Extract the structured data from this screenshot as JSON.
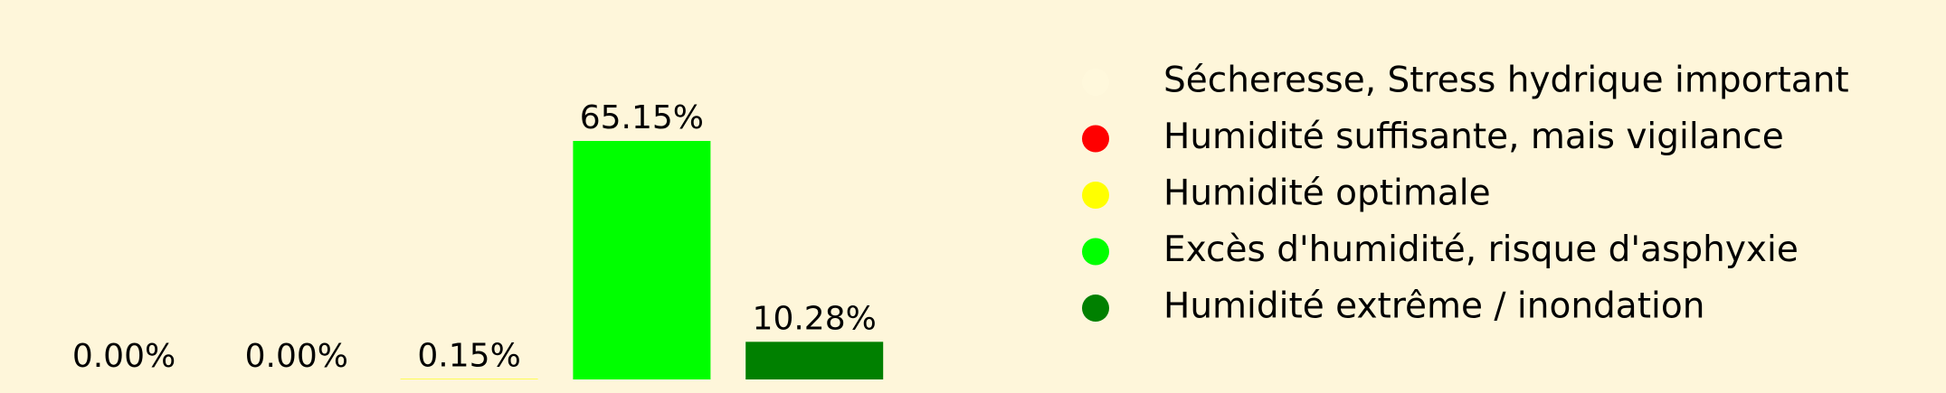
{
  "chart_data": {
    "type": "bar",
    "series": [
      {
        "name": "Sécheresse, Stress hydrique important",
        "color": "#fff8dc",
        "values": [
          0
        ],
        "value_labels": [
          "0.00%"
        ]
      },
      {
        "name": "Humidité suffisante, mais vigilance",
        "color": "#ff0000",
        "values": [
          0
        ],
        "value_labels": [
          "0.00%"
        ]
      },
      {
        "name": "Humidité optimale",
        "color": "#ffff00",
        "values": [
          0.15
        ],
        "value_labels": [
          "0.15%"
        ]
      },
      {
        "name": "Excès d'humidité, risque d'asphyxie",
        "color": "#00ff00",
        "values": [
          65.15
        ],
        "value_labels": [
          "65.15%"
        ]
      },
      {
        "name": "Humidité extrême / inondation",
        "color": "#008000",
        "values": [
          10.28
        ],
        "value_labels": [
          "10.28%"
        ]
      }
    ]
  }
}
